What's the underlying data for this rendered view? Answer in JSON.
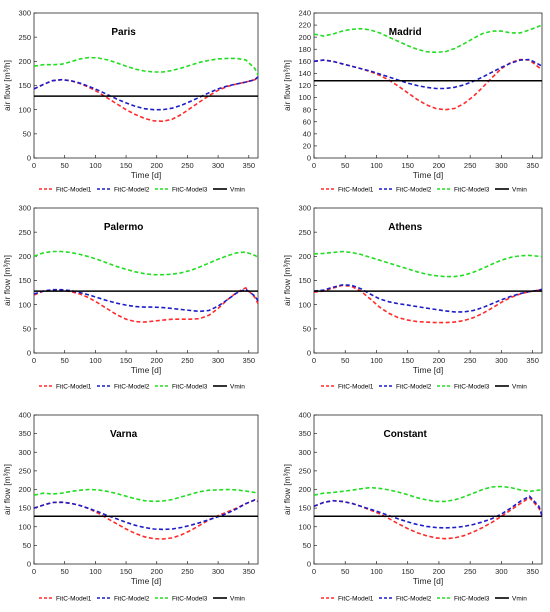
{
  "figure": {
    "background": "#ffffff",
    "axis_color": "#262626",
    "tick_label_color": "#262626"
  },
  "legend_labels": [
    "FitC-Model1",
    "FitC-Model2",
    "FitC-Model3",
    "Vmin"
  ],
  "series_colors": [
    "#ff2a2a",
    "#1c1cc8",
    "#22dd22",
    "#000000"
  ],
  "chart_data": [
    {
      "type": "line",
      "title": "Paris",
      "xlabel": "Time [d]",
      "ylabel": "air flow [m³/h]",
      "xlim": [
        0,
        365
      ],
      "ylim": [
        0,
        300
      ],
      "xticks": [
        0,
        50,
        100,
        150,
        200,
        250,
        300,
        350
      ],
      "yticks": [
        0,
        50,
        100,
        150,
        200,
        250,
        300
      ],
      "legend_position": "bottom",
      "x": [
        0,
        15,
        30,
        45,
        60,
        75,
        90,
        105,
        120,
        135,
        150,
        165,
        180,
        195,
        210,
        225,
        240,
        255,
        270,
        285,
        300,
        315,
        330,
        345,
        360,
        365
      ],
      "series": [
        {
          "name": "FitC-Model1",
          "style": "dashed",
          "values": [
            143,
            152,
            160,
            162,
            160,
            154,
            146,
            136,
            124,
            112,
            100,
            90,
            82,
            77,
            76,
            80,
            90,
            103,
            116,
            129,
            140,
            148,
            153,
            157,
            162,
            168
          ]
        },
        {
          "name": "FitC-Model2",
          "style": "dashed",
          "values": [
            143,
            152,
            160,
            162,
            160,
            155,
            148,
            140,
            131,
            122,
            114,
            107,
            102,
            100,
            100,
            103,
            109,
            117,
            126,
            135,
            143,
            149,
            153,
            157,
            162,
            168
          ]
        },
        {
          "name": "FitC-Model3",
          "style": "dashed",
          "values": [
            190,
            193,
            193,
            194,
            199,
            205,
            208,
            207,
            203,
            197,
            190,
            184,
            180,
            178,
            178,
            181,
            186,
            192,
            198,
            202,
            205,
            206,
            206,
            203,
            185,
            172
          ]
        },
        {
          "name": "Vmin",
          "style": "solid",
          "values": [
            128,
            128,
            128,
            128,
            128,
            128,
            128,
            128,
            128,
            128,
            128,
            128,
            128,
            128,
            128,
            128,
            128,
            128,
            128,
            128,
            128,
            128,
            128,
            128,
            128,
            128
          ]
        }
      ]
    },
    {
      "type": "line",
      "title": "Madrid",
      "xlabel": "Time [d]",
      "ylabel": "air flow [m³/h]",
      "xlim": [
        0,
        365
      ],
      "ylim": [
        0,
        240
      ],
      "xticks": [
        0,
        50,
        100,
        150,
        200,
        250,
        300,
        350
      ],
      "yticks": [
        0,
        20,
        40,
        60,
        80,
        100,
        120,
        140,
        160,
        180,
        200,
        220,
        240
      ],
      "legend_position": "bottom",
      "x": [
        0,
        15,
        30,
        45,
        60,
        75,
        90,
        105,
        120,
        135,
        150,
        165,
        180,
        195,
        210,
        225,
        240,
        255,
        270,
        285,
        300,
        315,
        330,
        345,
        360,
        365
      ],
      "series": [
        {
          "name": "FitC-Model1",
          "style": "dashed",
          "values": [
            160,
            162,
            160,
            156,
            152,
            148,
            143,
            137,
            129,
            119,
            108,
            97,
            88,
            82,
            80,
            82,
            90,
            102,
            117,
            133,
            148,
            158,
            163,
            162,
            150,
            147
          ]
        },
        {
          "name": "FitC-Model2",
          "style": "dashed",
          "values": [
            160,
            162,
            160,
            156,
            152,
            148,
            144,
            139,
            134,
            129,
            124,
            120,
            117,
            115,
            115,
            117,
            121,
            127,
            134,
            142,
            150,
            157,
            162,
            163,
            155,
            152
          ]
        },
        {
          "name": "FitC-Model3",
          "style": "dashed",
          "values": [
            205,
            202,
            205,
            210,
            213,
            214,
            212,
            207,
            200,
            193,
            186,
            180,
            176,
            175,
            176,
            181,
            189,
            198,
            206,
            210,
            210,
            207,
            207,
            212,
            218,
            220
          ]
        },
        {
          "name": "Vmin",
          "style": "solid",
          "values": [
            128,
            128,
            128,
            128,
            128,
            128,
            128,
            128,
            128,
            128,
            128,
            128,
            128,
            128,
            128,
            128,
            128,
            128,
            128,
            128,
            128,
            128,
            128,
            128,
            128,
            128
          ]
        }
      ]
    },
    {
      "type": "line",
      "title": "Palermo",
      "xlabel": "Time [d]",
      "ylabel": "air flow [m³/h]",
      "xlim": [
        0,
        365
      ],
      "ylim": [
        0,
        300
      ],
      "xticks": [
        0,
        50,
        100,
        150,
        200,
        250,
        300,
        350
      ],
      "yticks": [
        0,
        50,
        100,
        150,
        200,
        250,
        300
      ],
      "legend_position": "bottom",
      "x": [
        0,
        15,
        30,
        45,
        60,
        75,
        90,
        105,
        120,
        135,
        150,
        165,
        180,
        195,
        210,
        225,
        240,
        255,
        270,
        285,
        300,
        315,
        330,
        345,
        360,
        365
      ],
      "series": [
        {
          "name": "FitC-Model1",
          "style": "dashed",
          "values": [
            120,
            128,
            130,
            130,
            127,
            122,
            114,
            103,
            91,
            79,
            70,
            65,
            64,
            66,
            68,
            70,
            70,
            70,
            71,
            78,
            92,
            110,
            125,
            135,
            115,
            102
          ]
        },
        {
          "name": "FitC-Model2",
          "style": "dashed",
          "values": [
            122,
            128,
            131,
            131,
            129,
            125,
            120,
            114,
            108,
            103,
            99,
            96,
            95,
            95,
            94,
            92,
            90,
            88,
            86,
            88,
            97,
            110,
            124,
            132,
            118,
            108
          ]
        },
        {
          "name": "FitC-Model3",
          "style": "dashed",
          "values": [
            200,
            207,
            210,
            210,
            208,
            204,
            199,
            193,
            186,
            179,
            173,
            168,
            164,
            162,
            162,
            163,
            166,
            171,
            178,
            186,
            194,
            201,
            207,
            209,
            202,
            198
          ]
        },
        {
          "name": "Vmin",
          "style": "solid",
          "values": [
            128,
            128,
            128,
            128,
            128,
            128,
            128,
            128,
            128,
            128,
            128,
            128,
            128,
            128,
            128,
            128,
            128,
            128,
            128,
            128,
            128,
            128,
            128,
            128,
            128,
            128
          ]
        }
      ]
    },
    {
      "type": "line",
      "title": "Athens",
      "xlabel": "Time [d]",
      "ylabel": "air flow [m³/h]",
      "xlim": [
        0,
        365
      ],
      "ylim": [
        0,
        300
      ],
      "xticks": [
        0,
        50,
        100,
        150,
        200,
        250,
        300,
        350
      ],
      "yticks": [
        0,
        50,
        100,
        150,
        200,
        250,
        300
      ],
      "legend_position": "bottom",
      "x": [
        0,
        15,
        30,
        45,
        60,
        75,
        90,
        105,
        120,
        135,
        150,
        165,
        180,
        195,
        210,
        225,
        240,
        255,
        270,
        285,
        300,
        315,
        330,
        345,
        360,
        365
      ],
      "series": [
        {
          "name": "FitC-Model1",
          "style": "dashed",
          "values": [
            126,
            128,
            134,
            140,
            138,
            128,
            112,
            95,
            82,
            73,
            68,
            65,
            64,
            63,
            63,
            64,
            67,
            73,
            82,
            93,
            105,
            115,
            122,
            127,
            130,
            132
          ]
        },
        {
          "name": "FitC-Model2",
          "style": "dashed",
          "values": [
            128,
            130,
            136,
            141,
            140,
            133,
            122,
            112,
            106,
            102,
            99,
            96,
            93,
            90,
            87,
            85,
            85,
            88,
            94,
            102,
            110,
            117,
            123,
            127,
            130,
            132
          ]
        },
        {
          "name": "FitC-Model3",
          "style": "dashed",
          "values": [
            205,
            206,
            208,
            210,
            208,
            204,
            198,
            192,
            186,
            180,
            174,
            168,
            163,
            160,
            158,
            158,
            161,
            167,
            175,
            184,
            192,
            198,
            201,
            202,
            200,
            199
          ]
        },
        {
          "name": "Vmin",
          "style": "solid",
          "values": [
            128,
            128,
            128,
            128,
            128,
            128,
            128,
            128,
            128,
            128,
            128,
            128,
            128,
            128,
            128,
            128,
            128,
            128,
            128,
            128,
            128,
            128,
            128,
            128,
            128,
            128
          ]
        }
      ]
    },
    {
      "type": "line",
      "title": "Varna",
      "xlabel": "Time [d]",
      "ylabel": "air flow [m³/h]",
      "xlim": [
        0,
        365
      ],
      "ylim": [
        0,
        400
      ],
      "xticks": [
        0,
        50,
        100,
        150,
        200,
        250,
        300,
        350
      ],
      "yticks": [
        0,
        50,
        100,
        150,
        200,
        250,
        300,
        350,
        400
      ],
      "legend_position": "bottom",
      "x": [
        0,
        15,
        30,
        45,
        60,
        75,
        90,
        105,
        120,
        135,
        150,
        165,
        180,
        195,
        210,
        225,
        240,
        255,
        270,
        285,
        300,
        315,
        330,
        345,
        360,
        365
      ],
      "series": [
        {
          "name": "FitC-Model1",
          "style": "dashed",
          "values": [
            150,
            158,
            165,
            166,
            163,
            157,
            148,
            136,
            122,
            108,
            94,
            82,
            73,
            68,
            67,
            70,
            78,
            90,
            104,
            118,
            130,
            140,
            150,
            162,
            172,
            168
          ]
        },
        {
          "name": "FitC-Model2",
          "style": "dashed",
          "values": [
            150,
            158,
            165,
            166,
            163,
            157,
            149,
            140,
            130,
            121,
            112,
            104,
            98,
            94,
            93,
            94,
            98,
            104,
            111,
            119,
            127,
            136,
            148,
            162,
            172,
            168
          ]
        },
        {
          "name": "FitC-Model3",
          "style": "dashed",
          "values": [
            185,
            190,
            188,
            190,
            195,
            198,
            200,
            199,
            195,
            189,
            182,
            175,
            170,
            168,
            169,
            173,
            180,
            187,
            194,
            198,
            199,
            200,
            199,
            196,
            192,
            190
          ]
        },
        {
          "name": "Vmin",
          "style": "solid",
          "values": [
            128,
            128,
            128,
            128,
            128,
            128,
            128,
            128,
            128,
            128,
            128,
            128,
            128,
            128,
            128,
            128,
            128,
            128,
            128,
            128,
            128,
            128,
            128,
            128,
            128,
            128
          ]
        }
      ]
    },
    {
      "type": "line",
      "title": "Constant",
      "xlabel": "Time [d]",
      "ylabel": "air flow [m³/h]",
      "xlim": [
        0,
        365
      ],
      "ylim": [
        0,
        400
      ],
      "xticks": [
        0,
        50,
        100,
        150,
        200,
        250,
        300,
        350
      ],
      "yticks": [
        0,
        50,
        100,
        150,
        200,
        250,
        300,
        350,
        400
      ],
      "legend_position": "bottom",
      "x": [
        0,
        15,
        30,
        45,
        60,
        75,
        90,
        105,
        120,
        135,
        150,
        165,
        180,
        195,
        210,
        225,
        240,
        255,
        270,
        285,
        300,
        315,
        330,
        345,
        360,
        365
      ],
      "series": [
        {
          "name": "FitC-Model1",
          "style": "dashed",
          "values": [
            155,
            165,
            170,
            168,
            163,
            155,
            145,
            135,
            122,
            108,
            95,
            84,
            76,
            70,
            68,
            70,
            76,
            86,
            98,
            112,
            128,
            145,
            162,
            178,
            150,
            130
          ]
        },
        {
          "name": "FitC-Model2",
          "style": "dashed",
          "values": [
            155,
            165,
            170,
            168,
            163,
            155,
            147,
            139,
            130,
            121,
            113,
            106,
            101,
            98,
            97,
            98,
            101,
            106,
            113,
            122,
            134,
            150,
            168,
            182,
            155,
            130
          ]
        },
        {
          "name": "FitC-Model3",
          "style": "dashed",
          "values": [
            185,
            190,
            192,
            195,
            198,
            202,
            205,
            203,
            199,
            193,
            186,
            178,
            172,
            168,
            168,
            172,
            180,
            190,
            200,
            207,
            208,
            205,
            199,
            195,
            198,
            200
          ]
        },
        {
          "name": "Vmin",
          "style": "solid",
          "values": [
            128,
            128,
            128,
            128,
            128,
            128,
            128,
            128,
            128,
            128,
            128,
            128,
            128,
            128,
            128,
            128,
            128,
            128,
            128,
            128,
            128,
            128,
            128,
            128,
            128,
            128
          ]
        }
      ]
    }
  ]
}
